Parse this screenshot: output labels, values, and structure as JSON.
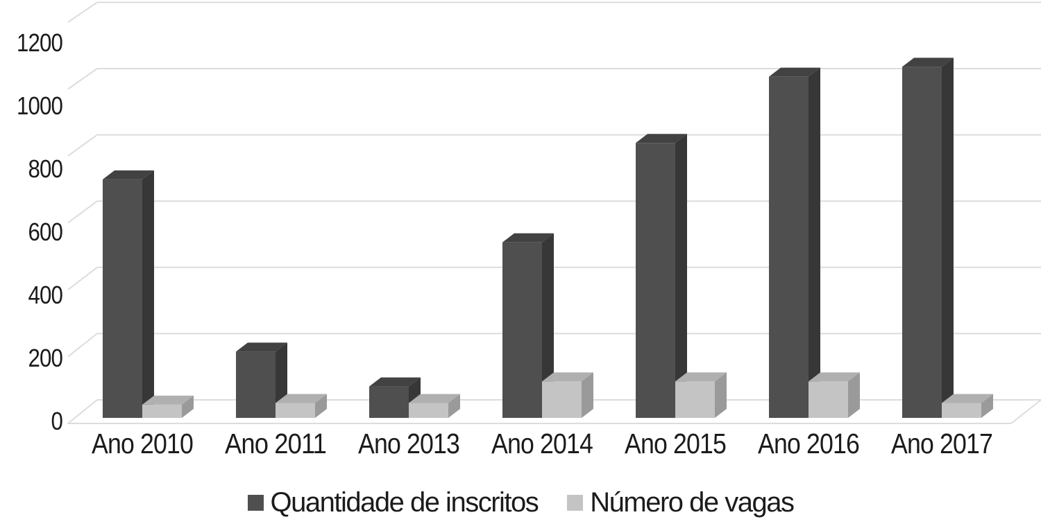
{
  "chart_data": {
    "type": "bar",
    "style": "3d-clustered-columns",
    "categories": [
      "Ano 2010",
      "Ano 2011",
      "Ano 2013",
      "Ano 2014",
      "Ano 2015",
      "Ano 2016",
      "Ano 2017"
    ],
    "series": [
      {
        "name": "Quantidade de inscritos",
        "values": [
          720,
          200,
          95,
          530,
          830,
          1030,
          1060
        ],
        "colors": {
          "front": "#4f4f4f",
          "side": "#373737",
          "top": "#424242"
        }
      },
      {
        "name": "Número de vagas",
        "values": [
          40,
          45,
          45,
          110,
          110,
          110,
          45
        ],
        "colors": {
          "front": "#c4c4c4",
          "side": "#9a9a9a",
          "top": "#b0b0b0"
        }
      }
    ],
    "yticks": [
      0,
      200,
      400,
      600,
      800,
      1000,
      1200
    ],
    "ylim": [
      0,
      1300
    ],
    "grid": "horizontal",
    "legend_position": "bottom",
    "background": "#ffffff",
    "gridline_color": "#dcdcdc",
    "text_color": "#1b1b1b"
  }
}
